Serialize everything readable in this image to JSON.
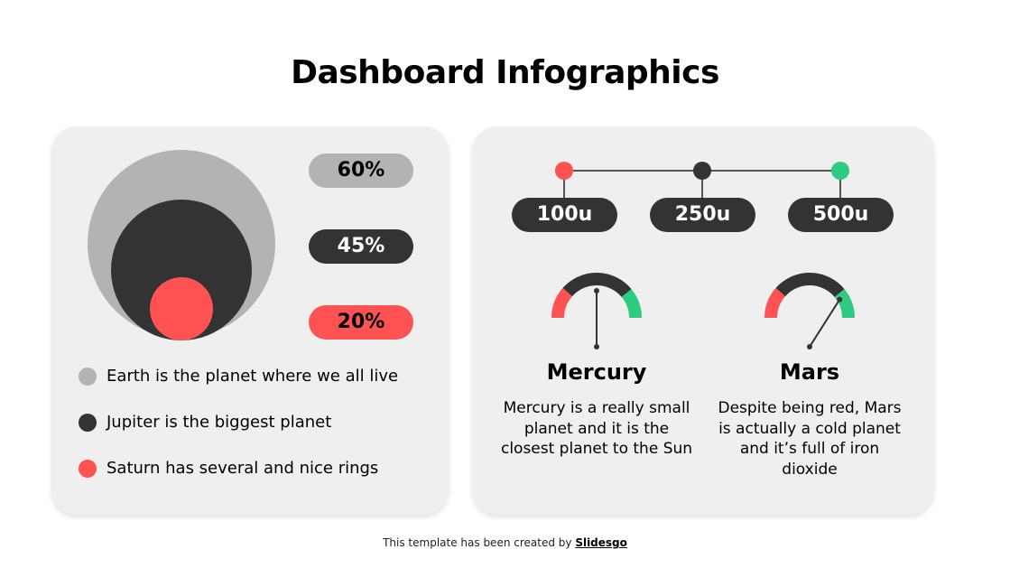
{
  "title": "Dashboard Infographics",
  "left": {
    "percentages": [
      {
        "label": "60%",
        "color": "#b3b3b3",
        "text_color": "#000000"
      },
      {
        "label": "45%",
        "color": "#333333",
        "text_color": "#ffffff"
      },
      {
        "label": "20%",
        "color": "#ff5252",
        "text_color": "#000000"
      }
    ],
    "legend": [
      {
        "text": "Earth is the planet where we all live",
        "color": "#b3b3b3"
      },
      {
        "text": "Jupiter is the biggest planet",
        "color": "#333333"
      },
      {
        "text": "Saturn has several and nice rings",
        "color": "#ff5252"
      }
    ]
  },
  "right": {
    "timeline": [
      {
        "label": "100u",
        "color": "#ff5252"
      },
      {
        "label": "250u",
        "color": "#333333"
      },
      {
        "label": "500u",
        "color": "#2ecc80"
      }
    ],
    "gauges": [
      {
        "name": "Mercury",
        "description": "Mercury is a really small planet and it is the closest planet to the Sun",
        "needle_position": 0.5
      },
      {
        "name": "Mars",
        "description": "Despite being red, Mars is actually a cold planet and it’s full of iron dioxide",
        "needle_position": 0.68
      }
    ],
    "gauge_colors": [
      "#ff5252",
      "#333333",
      "#2ecc80"
    ]
  },
  "footer": {
    "text": "This template has been created by ",
    "brand": "Slidesgo"
  }
}
